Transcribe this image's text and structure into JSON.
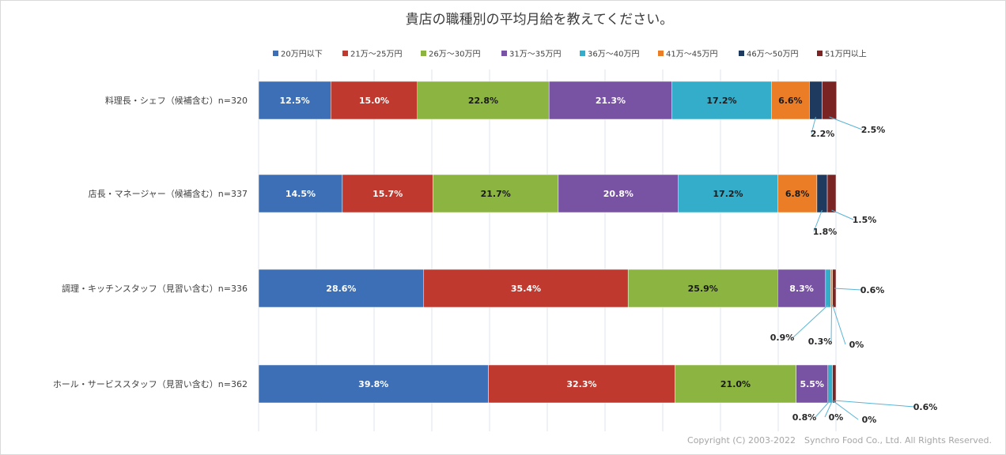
{
  "chart_data": {
    "type": "bar",
    "orientation": "horizontal",
    "stacked": true,
    "title": "貴店の職種別の平均月給を教えてください。",
    "legend_position": "top",
    "grid": true,
    "xlim": [
      0,
      100
    ],
    "categories": [
      "料理長・シェフ（候補含む）n=320",
      "店長・マネージャー（候補含む）n=337",
      "調理・キッチンスタッフ（見習い含む）n=336",
      "ホール・サービススタッフ（見習い含む）n=362"
    ],
    "series": [
      {
        "name": "20万円以下",
        "color": "#3c6fb6",
        "values": [
          12.5,
          14.5,
          28.6,
          39.8
        ]
      },
      {
        "name": "21万～25万円",
        "color": "#c0392f",
        "values": [
          15.0,
          15.7,
          35.4,
          32.3
        ]
      },
      {
        "name": "26万～30万円",
        "color": "#8cb440",
        "values": [
          22.8,
          21.7,
          25.9,
          21.0
        ]
      },
      {
        "name": "31万～35万円",
        "color": "#7853a3",
        "values": [
          21.3,
          20.8,
          8.3,
          5.5
        ]
      },
      {
        "name": "36万～40万円",
        "color": "#33adc9",
        "values": [
          17.2,
          17.2,
          0.9,
          0.8
        ]
      },
      {
        "name": "41万～45万円",
        "color": "#eb7d26",
        "values": [
          6.6,
          6.8,
          0.3,
          0
        ]
      },
      {
        "name": "46万～50万円",
        "color": "#1f3a5f",
        "values": [
          2.2,
          1.8,
          0,
          0
        ]
      },
      {
        "name": "51万円以上",
        "color": "#7a2424",
        "values": [
          2.5,
          1.5,
          0.6,
          0.6
        ]
      }
    ],
    "labels": [
      [
        "12.5%",
        "15.0%",
        "22.8%",
        "21.3%",
        "17.2%",
        "6.6%",
        "2.2%",
        "2.5%"
      ],
      [
        "14.5%",
        "15.7%",
        "21.7%",
        "20.8%",
        "17.2%",
        "6.8%",
        "1.8%",
        "1.5%"
      ],
      [
        "28.6%",
        "35.4%",
        "25.9%",
        "8.3%",
        "0.9%",
        "0.3%",
        "0%",
        "0.6%"
      ],
      [
        "39.8%",
        "32.3%",
        "21.0%",
        "5.5%",
        "0.8%",
        "0%",
        "0%",
        "0.6%"
      ]
    ]
  },
  "copyright": "Copyright (C) 2003-2022　Synchro Food Co., Ltd. All Rights Reserved."
}
